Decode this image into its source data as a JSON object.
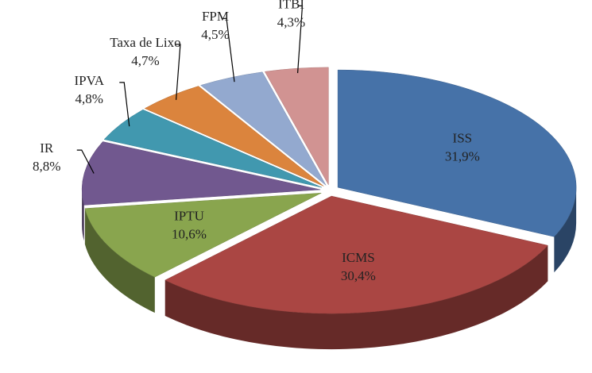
{
  "chart_data": {
    "type": "pie",
    "categories": [
      "ISS",
      "ICMS",
      "IPTU",
      "IR",
      "IPVA",
      "Taxa de Lixo",
      "FPM",
      "ITBI"
    ],
    "values": [
      31.9,
      30.4,
      10.6,
      8.8,
      4.8,
      4.7,
      4.5,
      4.3
    ],
    "value_labels": [
      "31,9%",
      "30,4%",
      "10,6%",
      "8,8%",
      "4,8%",
      "4,7%",
      "4,5%",
      "4,3%"
    ],
    "colors": [
      "#4672a8",
      "#aa4643",
      "#89a54e",
      "#71588f",
      "#4198af",
      "#db843d",
      "#93a9cf",
      "#d19392"
    ]
  }
}
